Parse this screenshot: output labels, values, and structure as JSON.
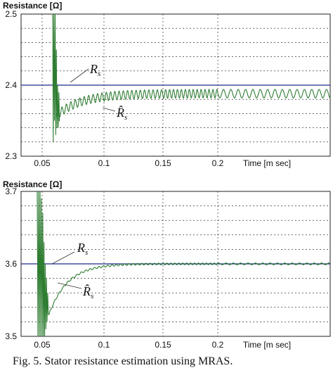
{
  "chart_data": [
    {
      "type": "line",
      "ylabel": "Resistance [Ω]",
      "xlabel": "Time [m sec]",
      "xlim": [
        0.035,
        0.255
      ],
      "ylim": [
        2.3,
        2.5
      ],
      "x_ticks": [
        0.05,
        0.1,
        0.15,
        0.2
      ],
      "x_tick_labels": [
        "0.05",
        "0.1",
        "0.15",
        "0.2"
      ],
      "y_ticks": [
        2.3,
        2.4,
        2.5
      ],
      "y_tick_labels": [
        "2.3",
        "2.4",
        "2.5"
      ],
      "grid": true,
      "series": [
        {
          "name": "R_s",
          "kind": "reference",
          "color": "#1f2a8c",
          "x": [
            0.035,
            0.255
          ],
          "y": [
            2.4,
            2.4
          ]
        },
        {
          "name": "R̂_s",
          "kind": "estimate",
          "color": "#2e7d32",
          "start_x": 0.0615,
          "settle_y": 2.388,
          "initial_y": 2.357,
          "time_constant": 0.02,
          "ripple_amplitude": 0.006,
          "ripple_period": 0.0036,
          "transient_x": [
            0.0585,
            0.059,
            0.0595,
            0.06,
            0.0605,
            0.061,
            0.0615,
            0.062,
            0.0625,
            0.063,
            0.0635,
            0.064
          ],
          "transient_y": [
            2.5,
            2.32,
            2.5,
            2.35,
            2.5,
            2.33,
            2.45,
            2.34,
            2.4,
            2.34,
            2.39,
            2.35
          ]
        }
      ],
      "annotations": [
        {
          "text": "R",
          "subscript": "s",
          "target_series": "R_s"
        },
        {
          "text": "R̂",
          "subscript": "s",
          "target_series": "R̂_s"
        }
      ]
    },
    {
      "type": "line",
      "ylabel": "Resistance [Ω]",
      "xlabel": "Time [m sec]",
      "xlim": [
        0.035,
        0.255
      ],
      "ylim": [
        3.5,
        3.7
      ],
      "x_ticks": [
        0.05,
        0.1,
        0.15,
        0.2
      ],
      "x_tick_labels": [
        "0.05",
        "0.1",
        "0.15",
        "0.2"
      ],
      "y_ticks": [
        3.5,
        3.6,
        3.7
      ],
      "y_tick_labels": [
        "3.5",
        "3.6",
        "3.7"
      ],
      "grid": true,
      "series": [
        {
          "name": "R_s",
          "kind": "reference",
          "color": "#1f2a8c",
          "x": [
            0.035,
            0.255
          ],
          "y": [
            3.6,
            3.6
          ]
        },
        {
          "name": "R̂_s",
          "kind": "estimate",
          "color": "#2e7d32",
          "start_x": 0.0555,
          "settle_y": 3.6,
          "initial_y": 3.53,
          "time_constant": 0.015,
          "ripple_amplitude": 0.0012,
          "ripple_period": 0.0036,
          "transient_x": [
            0.0465,
            0.047,
            0.0475,
            0.048,
            0.0485,
            0.049,
            0.0495,
            0.05,
            0.0505,
            0.051,
            0.0515,
            0.052,
            0.0525,
            0.053,
            0.0535,
            0.054,
            0.0545,
            0.055
          ],
          "transient_y": [
            3.7,
            3.5,
            3.7,
            3.5,
            3.7,
            3.5,
            3.69,
            3.5,
            3.67,
            3.5,
            3.63,
            3.5,
            3.6,
            3.51,
            3.58,
            3.52,
            3.56,
            3.53
          ]
        }
      ],
      "annotations": [
        {
          "text": "R",
          "subscript": "s",
          "target_series": "R_s"
        },
        {
          "text": "R̂",
          "subscript": "s",
          "target_series": "R̂_s"
        }
      ]
    }
  ],
  "caption": "Fig. 5.  Stator resistance estimation using MRAS."
}
